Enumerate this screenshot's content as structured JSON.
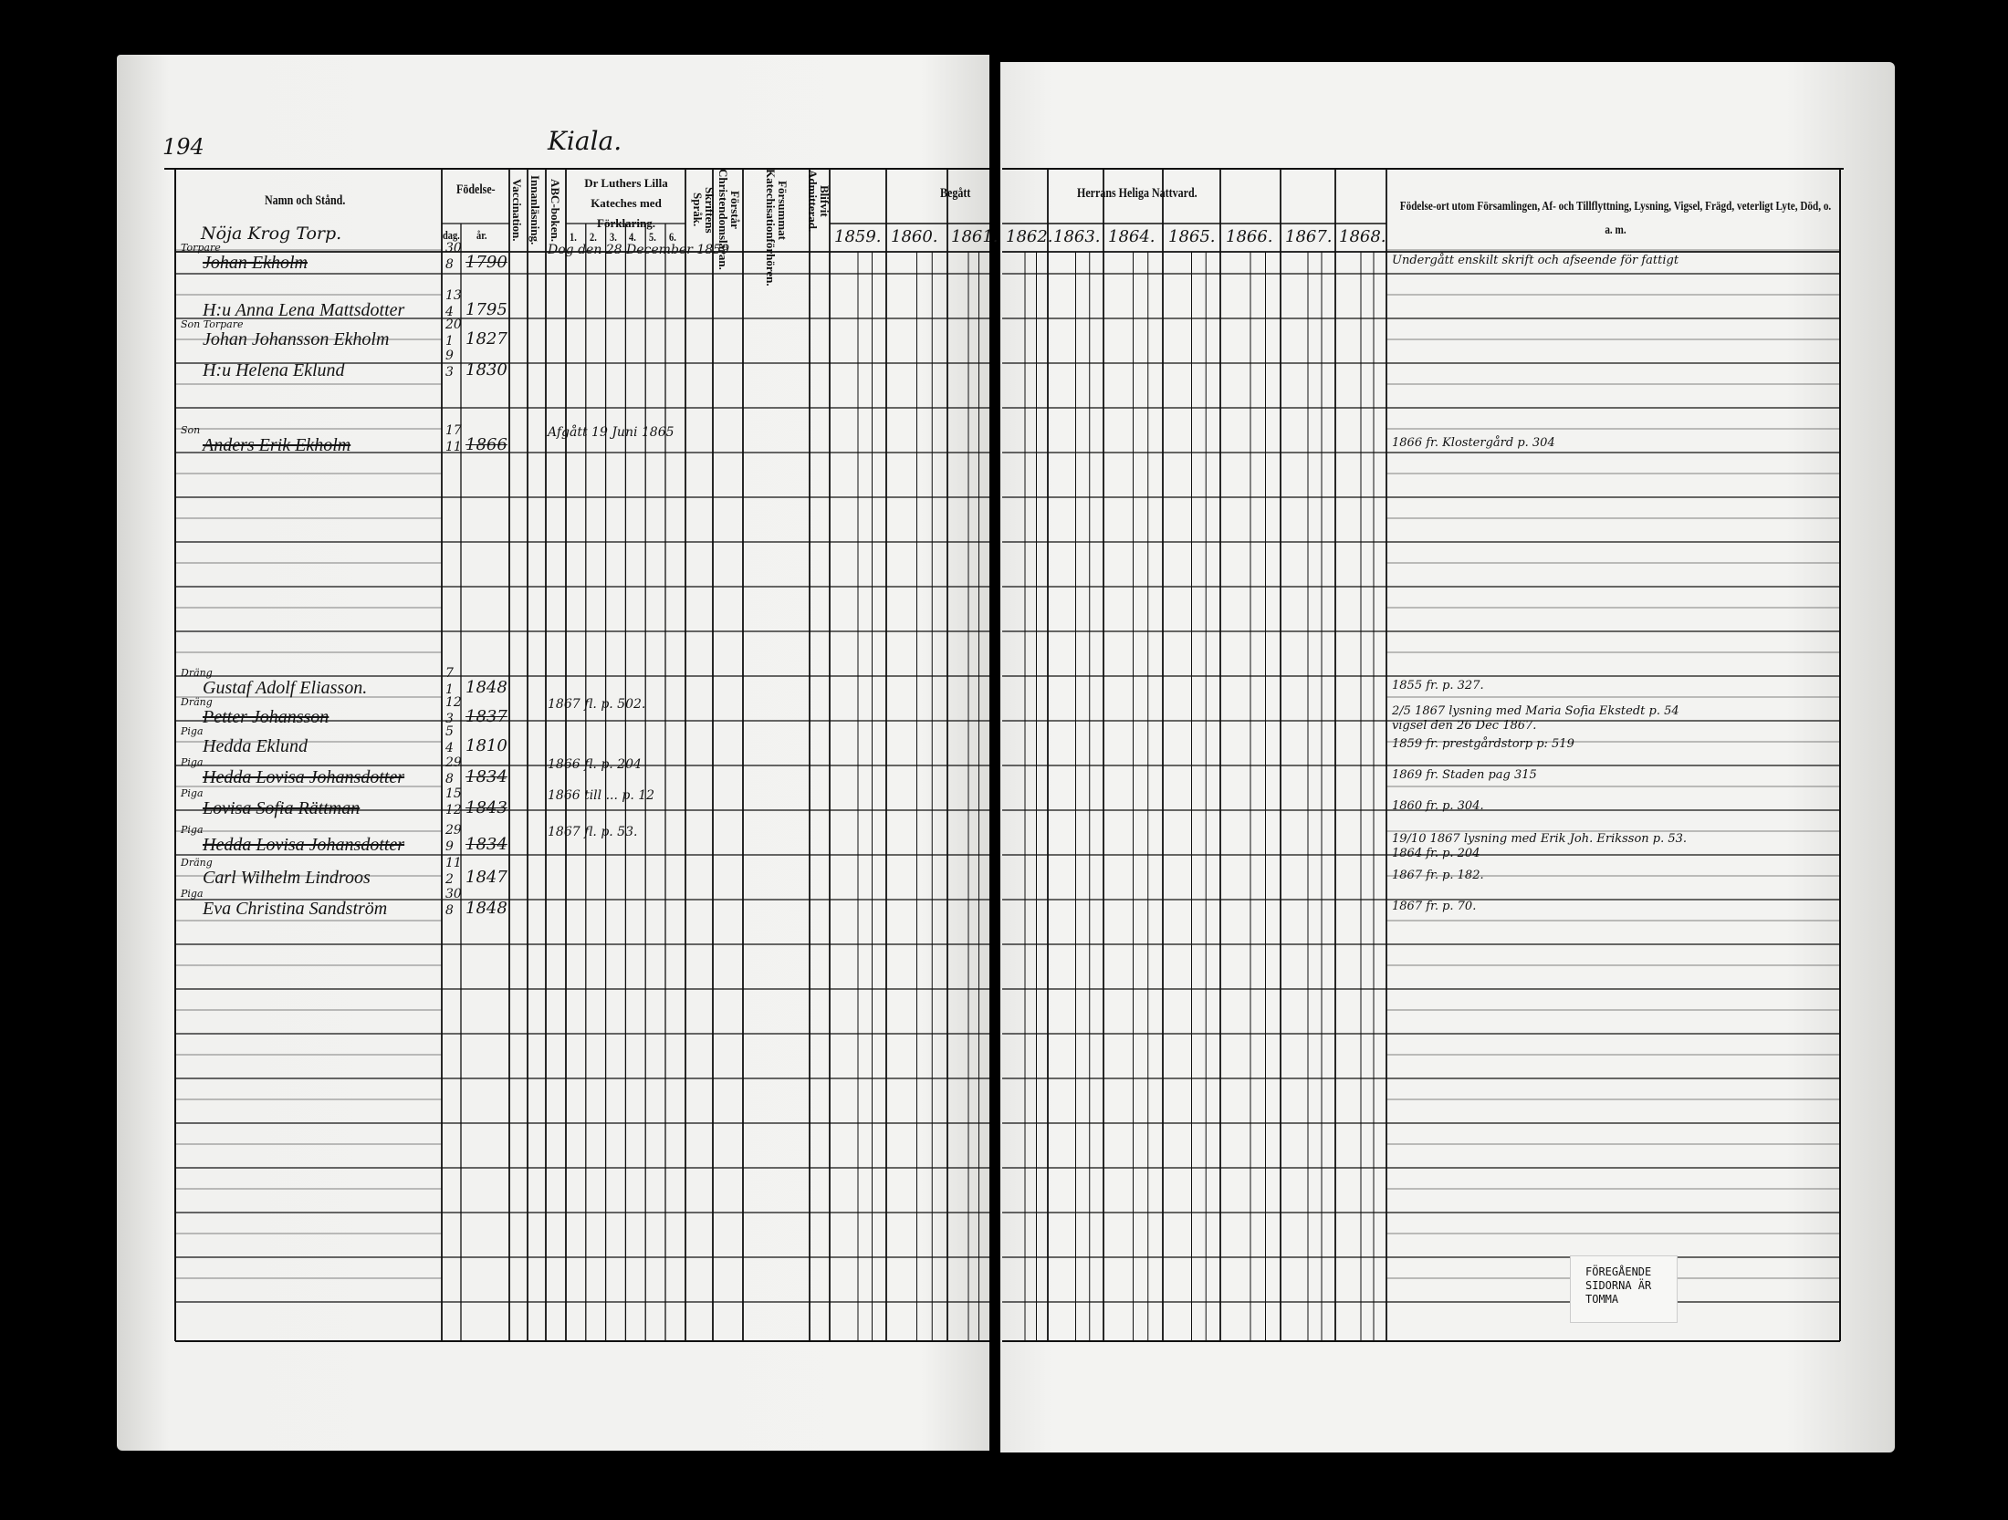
{
  "page_number": "194",
  "place_title": "Kiala.",
  "headers": {
    "name": "Namn och Stånd.",
    "birth": "Födelse-",
    "birth_day": "dag.",
    "birth_year": "år.",
    "vaccination": "Vaccination.",
    "innanlasning": "Innanläsning.",
    "abc": "ABC-boken.",
    "catechism": "Dr Luthers Lilla Kateches med Förklaring.",
    "catechism_parts": [
      "1.",
      "2.",
      "3.",
      "4.",
      "5.",
      "6."
    ],
    "skrift": "Skriftens Språk.",
    "forstar": "Förstår Christendomsläran.",
    "forsummat": "Försummat Katechisationförhören.",
    "admitterad": "Blifvit Admitterad.",
    "begatt": "Begått",
    "nattvard": "Herrans Heliga Nattvard.",
    "years_left": [
      "1859.",
      "1860.",
      "1861."
    ],
    "years_right": [
      "1862.",
      "1863.",
      "1864.",
      "1865.",
      "1866.",
      "1867.",
      "1868."
    ],
    "remarks": "Födelse-ort utom Församlingen, Af- och Tillflyttning, Lysning, Vigsel, Frägd, veterligt Lyte, Död, o. a. m."
  },
  "household_heading": "Nöja Krog Torp.",
  "entries": [
    {
      "title": "Torpare",
      "name": "Johan Ekholm",
      "day": "30",
      "month": "8",
      "year": "1790",
      "struck": true,
      "catechism_note": "Dog den 28 December 1859",
      "remark": "Undergått enskilt skrift och afseende för fattigt"
    },
    {
      "title": "",
      "name": "H:u Anna Lena Mattsdotter",
      "day": "13",
      "month": "4",
      "year": "1795",
      "struck": false,
      "catechism_note": "",
      "remark": ""
    },
    {
      "title": "Son Torpare",
      "name": "Johan Johansson Ekholm",
      "day": "20",
      "month": "1",
      "year": "1827",
      "struck": false,
      "catechism_note": "",
      "remark": ""
    },
    {
      "title": "",
      "name": "H:u Helena Eklund",
      "day": "9",
      "month": "3",
      "year": "1830",
      "struck": false,
      "catechism_note": "",
      "remark": ""
    },
    {
      "title": "Son",
      "name": "Anders Erik Ekholm",
      "day": "17",
      "month": "11",
      "year": "1866",
      "struck": true,
      "catechism_note": "Afgått 19 Juni 1865",
      "remark": "1866 fr. Klostergård p. 304"
    },
    {
      "title": "Dräng",
      "name": "Gustaf Adolf Eliasson.",
      "day": "7",
      "month": "1",
      "year": "1848",
      "struck": false,
      "catechism_note": "",
      "remark": "1855 fr. p. 327."
    },
    {
      "title": "Dräng",
      "name": "Petter Johansson",
      "day": "12",
      "month": "3",
      "year": "1837",
      "struck": true,
      "catechism_note": "1867 fl. p. 502.",
      "remark": "2/5 1867 lysning med Maria Sofia Ekstedt p. 54",
      "remark2": "vigsel den 26 Dec 1867."
    },
    {
      "title": "Piga",
      "name": "Hedda Eklund",
      "day": "5",
      "month": "4",
      "year": "1810",
      "struck": false,
      "catechism_note": "",
      "remark": "1859 fr. prestgårdstorp p: 519"
    },
    {
      "title": "Piga",
      "name": "Hedda Lovisa Johansdotter",
      "day": "29",
      "month": "8",
      "year": "1834",
      "struck": true,
      "catechism_note": "1866 fl. p. 204",
      "remark": "1869 fr. Staden pag 315"
    },
    {
      "title": "Piga",
      "name": "Lovisa Sofia Rättman",
      "day": "15",
      "month": "12",
      "year": "1843",
      "struck": true,
      "catechism_note": "1866 till ... p. 12",
      "remark": "1860 fr. p. 304."
    },
    {
      "title": "Piga",
      "name": "Hedda Lovisa Johansdotter",
      "day": "29",
      "month": "9",
      "year": "1834",
      "struck": true,
      "catechism_note": "1867 fl. p. 53.",
      "remark": "19/10 1867 lysning med Erik Joh. Eriksson p. 53.",
      "remark2": "1864 fr. p. 204"
    },
    {
      "title": "Dräng",
      "name": "Carl Wilhelm Lindroos",
      "day": "11",
      "month": "2",
      "year": "1847",
      "struck": false,
      "catechism_note": "",
      "remark": "1867 fr. p. 182."
    },
    {
      "title": "Piga",
      "name": "Eva Christina Sandström",
      "day": "30",
      "month": "8",
      "year": "1848",
      "struck": false,
      "catechism_note": "",
      "remark": "1867 fr. p. 70."
    }
  ],
  "stamp": {
    "line1": "FÖREGÅENDE",
    "line2": "SIDORNA ÄR",
    "line3": "TOMMA"
  },
  "colors": {
    "paper": "#f1f1ef",
    "ink": "#111111",
    "background": "#000000"
  }
}
